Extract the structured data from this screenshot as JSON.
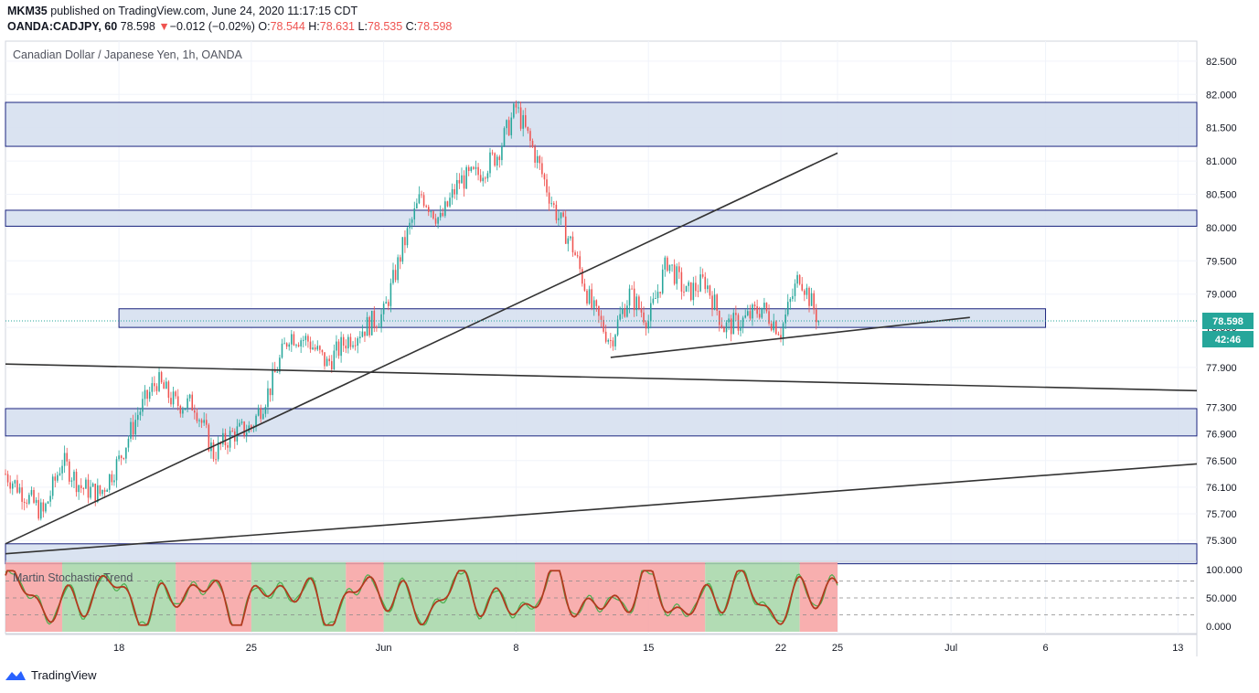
{
  "header": {
    "publisher": "MKM35",
    "published_text": "published on TradingView.com, June 24, 2020 11:17:15 CDT",
    "symbol": "OANDA:CADJPY, 60",
    "last": "78.598",
    "change_arrow": "▼",
    "change": "−0.012 (−0.02%)",
    "o_label": "O:",
    "o": "78.544",
    "h_label": "H:",
    "h": "78.631",
    "l_label": "L:",
    "l": "78.535",
    "c_label": "C:",
    "c": "78.598"
  },
  "footer": {
    "brand": "TradingView",
    "logo_icon": "tradingview-logo-icon"
  },
  "colors": {
    "up": "#26a69a",
    "down": "#ef5350",
    "zone_fill": "#d6e0ef",
    "zone_border": "#1a237e",
    "trendline": "#333333",
    "price_label": "#26a69a",
    "osc_line": "#b23a1e",
    "osc_line2": "#4caf50",
    "osc_bull": "#a5d6a7",
    "osc_bear": "#f7a1a1"
  },
  "chart_data": {
    "type": "candlestick",
    "title": "Canadian Dollar / Japanese Yen, 1h, OANDA",
    "x_ticks": [
      "18",
      "25",
      "Jun",
      "8",
      "15",
      "22",
      "25",
      "Jul",
      "6",
      "13"
    ],
    "y_ticks": [
      "82.500",
      "82.000",
      "81.500",
      "81.000",
      "80.500",
      "80.000",
      "79.500",
      "79.000",
      "78.500",
      "77.900",
      "77.300",
      "76.900",
      "76.500",
      "76.100",
      "75.700",
      "75.300"
    ],
    "price_label": "78.598",
    "countdown_label": "42:46",
    "x_range": [
      "2020-05-12",
      "2020-07-14"
    ],
    "y_range": [
      75.0,
      82.8
    ],
    "price_path": [
      [
        "2020-05-12",
        76.3
      ],
      [
        "2020-05-13",
        76.0
      ],
      [
        "2020-05-14",
        75.7
      ],
      [
        "2020-05-15",
        76.5
      ],
      [
        "2020-05-16",
        76.1
      ],
      [
        "2020-05-17",
        76.0
      ],
      [
        "2020-05-18",
        76.5
      ],
      [
        "2020-05-19",
        77.2
      ],
      [
        "2020-05-20",
        77.7
      ],
      [
        "2020-05-21",
        77.35
      ],
      [
        "2020-05-22",
        77.35
      ],
      [
        "2020-05-23",
        76.6
      ],
      [
        "2020-05-24",
        76.9
      ],
      [
        "2020-05-25",
        77.0
      ],
      [
        "2020-05-26",
        77.6
      ],
      [
        "2020-05-27",
        78.4
      ],
      [
        "2020-05-28",
        78.3
      ],
      [
        "2020-05-29",
        77.95
      ],
      [
        "2020-05-30",
        78.3
      ],
      [
        "2020-06-01",
        78.7
      ],
      [
        "2020-06-02",
        79.7
      ],
      [
        "2020-06-03",
        80.5
      ],
      [
        "2020-06-04",
        80.1
      ],
      [
        "2020-06-05",
        80.7
      ],
      [
        "2020-06-06",
        80.8
      ],
      [
        "2020-06-07",
        81.1
      ],
      [
        "2020-06-08",
        81.8
      ],
      [
        "2020-06-09",
        81.1
      ],
      [
        "2020-06-10",
        80.3
      ],
      [
        "2020-06-11",
        79.7
      ],
      [
        "2020-06-12",
        78.8
      ],
      [
        "2020-06-13",
        78.3
      ],
      [
        "2020-06-14",
        79.0
      ],
      [
        "2020-06-15",
        78.6
      ],
      [
        "2020-06-16",
        79.5
      ],
      [
        "2020-06-17",
        79.0
      ],
      [
        "2020-06-18",
        79.2
      ],
      [
        "2020-06-19",
        78.5
      ],
      [
        "2020-06-20",
        78.6
      ],
      [
        "2020-06-21",
        78.8
      ],
      [
        "2020-06-22",
        78.45
      ],
      [
        "2020-06-23",
        79.3
      ],
      [
        "2020-06-24",
        78.6
      ]
    ],
    "zones": [
      {
        "from": 81.22,
        "to": 81.88,
        "x_end": "right-edge"
      },
      {
        "from": 80.02,
        "to": 80.26,
        "x_end": "right-edge"
      },
      {
        "from": 78.5,
        "to": 78.78,
        "x_start": "2020-05-18",
        "x_end": "2020-07-06"
      },
      {
        "from": 76.87,
        "to": 77.28,
        "x_end": "right-edge"
      },
      {
        "from": 74.95,
        "to": 75.25,
        "x_end": "right-edge"
      }
    ],
    "trendlines": [
      {
        "from": [
          "2020-05-12",
          75.25
        ],
        "to": [
          "2020-06-25",
          81.12
        ]
      },
      {
        "from": [
          "2020-05-12",
          77.95
        ],
        "to": [
          "2020-07-14",
          77.55
        ]
      },
      {
        "from": [
          "2020-05-12",
          75.1
        ],
        "to": [
          "2020-07-14",
          76.45
        ]
      },
      {
        "from": [
          "2020-06-13",
          78.05
        ],
        "to": [
          "2020-07-02",
          78.65
        ]
      }
    ],
    "indicator": {
      "name": "Martin Stochastic Trend",
      "y_ticks": [
        "100.000",
        "50.000",
        "0.000"
      ],
      "y_range": [
        0,
        100
      ],
      "levels": [
        80,
        50,
        20
      ],
      "regime_segments": [
        [
          "2020-05-12",
          "2020-05-15",
          "bear"
        ],
        [
          "2020-05-15",
          "2020-05-21",
          "bull"
        ],
        [
          "2020-05-21",
          "2020-05-25",
          "bear"
        ],
        [
          "2020-05-25",
          "2020-05-30",
          "bull"
        ],
        [
          "2020-05-30",
          "2020-06-01",
          "bear"
        ],
        [
          "2020-06-01",
          "2020-06-09",
          "bull"
        ],
        [
          "2020-06-09",
          "2020-06-18",
          "bear"
        ],
        [
          "2020-06-18",
          "2020-06-23",
          "bull"
        ],
        [
          "2020-06-23",
          "2020-06-25",
          "bear"
        ]
      ]
    }
  }
}
